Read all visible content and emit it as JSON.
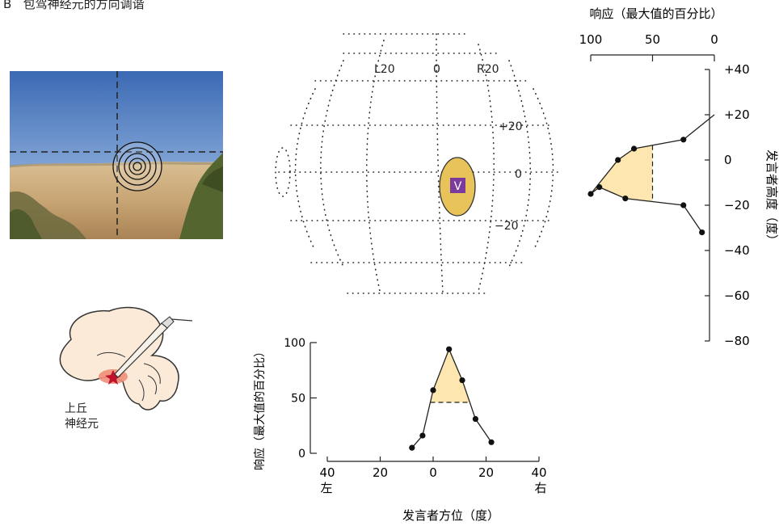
{
  "panel": {
    "letter": "B",
    "title": "包驾神经元的方向调谐"
  },
  "photo": {
    "description_colors": {
      "sky_top": "#3f6fb7",
      "sky_bottom": "#a9c4e4",
      "ground": "#c9a67a",
      "vegetation": "#5c6b3a"
    }
  },
  "brain": {
    "label_line1": "上丘",
    "label_line2": "神经元",
    "colors": {
      "tissue": "#fbead7",
      "outline": "#333333",
      "hotspot": "#f08f7a",
      "star": "#c0102a"
    }
  },
  "globe": {
    "top_labels": [
      "L20",
      "0",
      "R20"
    ],
    "side_labels": [
      "+20",
      "0",
      "−20"
    ],
    "receptive_field_label": "V",
    "colors": {
      "field": "#e8c35a",
      "field_outline": "#333333",
      "badge": "#7b3a9c"
    }
  },
  "chart_data": [
    {
      "type": "line",
      "name": "azimuth-tuning",
      "ylabel": "响应（最大值的百分比）",
      "xlabel": "发言者方位（度）",
      "x_ticks": [
        "40",
        "20",
        "0",
        "20",
        "40"
      ],
      "x_tick_values": [
        -40,
        -20,
        0,
        20,
        40
      ],
      "x_side_labels": {
        "left": "左",
        "right": "右"
      },
      "y_ticks": [
        "100",
        "50",
        "0"
      ],
      "y_tick_values": [
        100,
        50,
        0
      ],
      "xlim": [
        -40,
        40
      ],
      "ylim": [
        0,
        100
      ],
      "x": [
        -8,
        -4,
        0,
        6,
        11,
        16,
        22
      ],
      "y": [
        5,
        16,
        57,
        94,
        66,
        31,
        10
      ],
      "half_max_level": 46,
      "fill_color": "#fde6b0"
    },
    {
      "type": "line",
      "name": "elevation-tuning",
      "title": "响应（最大值的百分比）",
      "ylabel": "发言者高度（度）",
      "x_ticks": [
        "100",
        "50",
        "0"
      ],
      "x_tick_values": [
        100,
        50,
        0
      ],
      "y_ticks": [
        "+40",
        "+20",
        "0",
        "−20",
        "−40",
        "−60",
        "−80"
      ],
      "y_tick_values": [
        40,
        20,
        0,
        -20,
        -40,
        -60,
        -80
      ],
      "xlim": [
        100,
        0
      ],
      "ylim": [
        -80,
        40
      ],
      "response": [
        0,
        25,
        65,
        78,
        100,
        93,
        72,
        25,
        10
      ],
      "elevation": [
        20,
        9,
        5,
        0,
        -15,
        -12,
        -17,
        -20,
        -32
      ],
      "half_max_level": 50,
      "fill_color": "#fde6b0"
    }
  ]
}
